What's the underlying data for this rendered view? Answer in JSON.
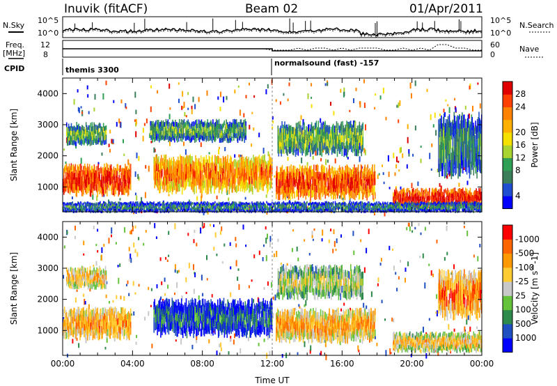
{
  "header": {
    "station": "Inuvik (fitACF)",
    "beam": "Beam 02",
    "date": "01/Apr/2011"
  },
  "top_panel": {
    "nsky_label": "N.Sky",
    "nsearch_label": "N.Search",
    "freq_label_1": "Freq.",
    "freq_label_2": "[MHz]",
    "nave_label": "Nave",
    "cpid_label": "CPID",
    "noise_ticks": [
      "10^5",
      "10^0"
    ],
    "freq_ticks": [
      "12",
      "8"
    ],
    "nave_ticks": [
      "60",
      "0"
    ],
    "cpid_segments": [
      {
        "start_hour": 0,
        "label": "themis 3300"
      },
      {
        "start_hour": 12,
        "label": "normalsound (fast) -157"
      }
    ]
  },
  "chart_data": [
    {
      "type": "heatmap",
      "title": "",
      "ylabel": "Slant Range [km]",
      "xlabel": "",
      "xlim_hours": [
        0,
        24
      ],
      "ylim": [
        200,
        4500
      ],
      "yticks": [
        1000,
        2000,
        3000,
        4000
      ],
      "colorbar": {
        "label": "Power [dB]",
        "ticks": [
          "4",
          "8",
          "12",
          "16",
          "20",
          "24",
          "28"
        ],
        "colors": [
          "#0000ff",
          "#1f4ed0",
          "#3a7f5a",
          "#2f9f55",
          "#a8d330",
          "#f6e000",
          "#ffb000",
          "#ff8200",
          "#ff4000",
          "#e00000"
        ]
      },
      "bands": [
        {
          "t0": 0.0,
          "t1": 3.9,
          "r0": 800,
          "r1": 1650,
          "level": 0.9
        },
        {
          "t0": 5.2,
          "t1": 12.0,
          "r0": 900,
          "r1": 1900,
          "level": 0.75
        },
        {
          "t0": 12.2,
          "t1": 17.9,
          "r0": 700,
          "r1": 1600,
          "level": 0.85
        },
        {
          "t0": 18.9,
          "t1": 24.0,
          "r0": 350,
          "r1": 900,
          "level": 0.95
        },
        {
          "t0": 0.2,
          "t1": 2.5,
          "r0": 2400,
          "r1": 3000,
          "level": 0.4
        },
        {
          "t0": 5.0,
          "t1": 10.5,
          "r0": 2500,
          "r1": 3100,
          "level": 0.35
        },
        {
          "t0": 12.3,
          "t1": 17.2,
          "r0": 2100,
          "r1": 3000,
          "level": 0.4
        },
        {
          "t0": 21.5,
          "t1": 24.0,
          "r0": 1500,
          "r1": 3200,
          "level": 0.3
        },
        {
          "t0": 0.0,
          "t1": 24.0,
          "r0": 200,
          "r1": 500,
          "level": 0.25
        }
      ]
    },
    {
      "type": "heatmap",
      "title": "",
      "ylabel": "Slant Range [km]",
      "xlabel": "Time UT",
      "xlim_hours": [
        0,
        24
      ],
      "ylim": [
        200,
        4500
      ],
      "yticks": [
        1000,
        2000,
        3000,
        4000
      ],
      "xticks": [
        "00:00",
        "04:00",
        "08:00",
        "12:00",
        "16:00",
        "20:00",
        "00:00"
      ],
      "colorbar": {
        "label": "Velocity [m s^-1]",
        "ticks": [
          "1000",
          "500",
          "100",
          "25",
          "-25",
          "-100",
          "-500",
          "-1000"
        ],
        "colors": [
          "#0000ff",
          "#1f4fc0",
          "#2e8a4a",
          "#64c23b",
          "#c8c8c8",
          "#ffcc33",
          "#ff9900",
          "#ff6600",
          "#ff0000"
        ]
      },
      "bands": [
        {
          "t0": 0.0,
          "t1": 3.9,
          "r0": 800,
          "r1": 1650,
          "level": 0.72
        },
        {
          "t0": 5.2,
          "t1": 12.0,
          "r0": 900,
          "r1": 1900,
          "level": 0.22
        },
        {
          "t0": 12.2,
          "t1": 17.9,
          "r0": 700,
          "r1": 1600,
          "level": 0.7
        },
        {
          "t0": 18.9,
          "t1": 24.0,
          "r0": 350,
          "r1": 900,
          "level": 0.62
        },
        {
          "t0": 12.3,
          "t1": 17.2,
          "r0": 2100,
          "r1": 3000,
          "level": 0.5
        },
        {
          "t0": 0.2,
          "t1": 2.5,
          "r0": 2400,
          "r1": 3000,
          "level": 0.65
        },
        {
          "t0": 21.5,
          "t1": 24.0,
          "r0": 1500,
          "r1": 2800,
          "level": 0.78
        }
      ]
    }
  ]
}
